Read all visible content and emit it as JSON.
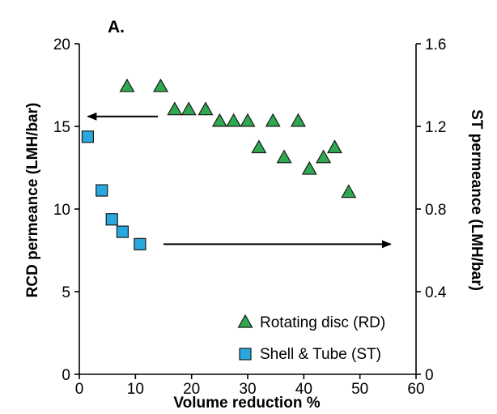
{
  "chart_data": {
    "type": "scatter",
    "panel_label": "A.",
    "xlabel": "Volume reduction %",
    "ylabel_left": "RCD permeance (LMH/bar)",
    "ylabel_right": "ST permeance (LMH/bar)",
    "xlim": [
      0,
      60
    ],
    "ylim_left": [
      0,
      20
    ],
    "ylim_right": [
      0,
      1.6
    ],
    "x_ticks": [
      0,
      10,
      20,
      30,
      40,
      50,
      60
    ],
    "y_left_ticks": [
      0,
      5,
      10,
      15,
      20
    ],
    "y_right_ticks": [
      "0",
      "0.4",
      "0.8",
      "1.2",
      "1.6"
    ],
    "y_right_tick_values": [
      0,
      0.4,
      0.8,
      1.2,
      1.6
    ],
    "grid": false,
    "legend_position": "bottom-right",
    "colors": {
      "rd_fill": "#2fa84f",
      "st_fill": "#29a8e0",
      "marker_stroke": "#1a1a1a"
    },
    "series": [
      {
        "name": "Rotating disc (RD)",
        "axis": "left",
        "marker": "triangle",
        "x": [
          8.5,
          14.5,
          17,
          19.5,
          22.5,
          25,
          27.5,
          30,
          32,
          34.5,
          36.5,
          39,
          41,
          43.5,
          45.5,
          48
        ],
        "y": [
          17.4,
          17.4,
          16.0,
          16.0,
          16.0,
          15.3,
          15.3,
          15.3,
          13.7,
          15.3,
          13.1,
          15.3,
          12.4,
          13.1,
          13.7,
          11.0
        ]
      },
      {
        "name": "Shell & Tube (ST)",
        "axis": "right",
        "marker": "square",
        "x": [
          1.5,
          4,
          5.8,
          7.7,
          10.8
        ],
        "y": [
          1.15,
          0.89,
          0.75,
          0.69,
          0.63
        ]
      }
    ],
    "annotations": [
      {
        "type": "arrow",
        "direction": "left",
        "from": [
          14,
          15.6
        ],
        "to": [
          1.5,
          15.6
        ],
        "axis": "left"
      },
      {
        "type": "arrow",
        "direction": "right",
        "from": [
          15,
          0.63
        ],
        "to": [
          55.5,
          0.63
        ],
        "axis": "right"
      }
    ]
  }
}
